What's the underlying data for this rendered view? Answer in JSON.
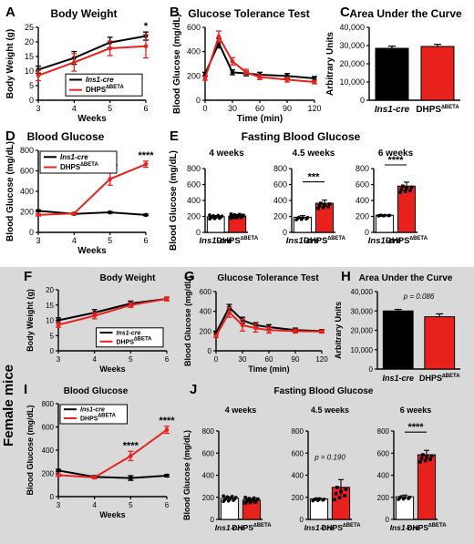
{
  "chart_data": [
    {
      "id": "A",
      "type": "line",
      "title": "Body Weight",
      "xlabel": "Weeks",
      "ylabel": "Body Weight (g)",
      "xlim": [
        3,
        6
      ],
      "ylim": [
        0,
        25
      ],
      "xticks": [
        "3",
        "4",
        "5",
        "6"
      ],
      "yticks": [
        "0",
        "5",
        "10",
        "15",
        "20",
        "25"
      ],
      "x": [
        3,
        4,
        5,
        6
      ],
      "series": [
        {
          "name": "Ins1-cre",
          "color": "#000000",
          "values": [
            10.5,
            14.5,
            19.8,
            22
          ],
          "err": [
            1.2,
            2.2,
            1.8,
            1.4
          ]
        },
        {
          "name": "DHPS∆BETA",
          "color": "#e8211d",
          "values": [
            8.5,
            13,
            17.8,
            18.5
          ],
          "err": [
            1.8,
            3,
            2.5,
            4
          ]
        }
      ],
      "annotations": [
        {
          "x": 6,
          "text": "*"
        }
      ],
      "legend": "bottom-right"
    },
    {
      "id": "B",
      "type": "line",
      "title": "Glucose Tolerance Test",
      "xlabel": "Time (min)",
      "ylabel": "Blood Glucose (mg/dL)",
      "xlim": [
        0,
        120
      ],
      "ylim": [
        0,
        600
      ],
      "xticks": [
        "0",
        "30",
        "60",
        "90",
        "120"
      ],
      "yticks": [
        "0",
        "200",
        "400",
        "600"
      ],
      "x": [
        0,
        15,
        30,
        45,
        60,
        90,
        120
      ],
      "series": [
        {
          "name": "Ins1-cre",
          "color": "#000000",
          "values": [
            215,
            470,
            230,
            220,
            210,
            200,
            180
          ],
          "err": [
            15,
            40,
            20,
            20,
            20,
            20,
            15
          ]
        },
        {
          "name": "DHPS∆BETA",
          "color": "#e8211d",
          "values": [
            180,
            525,
            320,
            230,
            190,
            170,
            150
          ],
          "err": [
            15,
            45,
            30,
            25,
            20,
            20,
            15
          ]
        }
      ]
    },
    {
      "id": "C",
      "type": "bar",
      "title": "Area Under the Curve",
      "ylabel": "Arbitrary Units",
      "ylim": [
        0,
        40000
      ],
      "yticks": [
        "0",
        "10,000",
        "20,000",
        "30,000",
        "40,000"
      ],
      "categories": [
        "Ins1-cre",
        "DHPS∆BETA"
      ],
      "values": [
        28500,
        29500
      ],
      "err": [
        1200,
        1200
      ],
      "colors": [
        "#000000",
        "#e8211d"
      ]
    },
    {
      "id": "D",
      "type": "line",
      "title": "Blood Glucose",
      "xlabel": "Weeks",
      "ylabel": "Blood Glucose (mg/dL)",
      "xlim": [
        3,
        6
      ],
      "ylim": [
        0,
        800
      ],
      "xticks": [
        "3",
        "4",
        "5",
        "6"
      ],
      "yticks": [
        "0",
        "200",
        "400",
        "600",
        "800"
      ],
      "x": [
        3,
        4,
        5,
        6
      ],
      "series": [
        {
          "name": "Ins1-cre",
          "color": "#000000",
          "values": [
            210,
            180,
            195,
            170
          ],
          "err": [
            8,
            8,
            8,
            8
          ]
        },
        {
          "name": "DHPS∆BETA",
          "color": "#e8211d",
          "values": [
            170,
            185,
            520,
            665
          ],
          "err": [
            10,
            10,
            60,
            30
          ]
        }
      ],
      "annotations": [
        {
          "x": 5,
          "text": "****"
        },
        {
          "x": 6,
          "text": "****"
        }
      ],
      "legend": "top-left"
    },
    {
      "id": "E",
      "type": "bar",
      "title": "Fasting Blood Glucose",
      "ylabel": "Blood Glucose (mg/dL)",
      "ylim": [
        0,
        800
      ],
      "yticks": [
        "0",
        "200",
        "400",
        "600",
        "800"
      ],
      "panels": [
        {
          "title": "4 weeks",
          "categories": [
            "Ins1-cre",
            "DHPS∆BETA"
          ],
          "values": [
            195,
            205
          ],
          "err": [
            15,
            15
          ],
          "sig": ""
        },
        {
          "title": "4.5 weeks",
          "categories": [
            "Ins1-cre",
            "DHPS∆BETA"
          ],
          "values": [
            190,
            365
          ],
          "err": [
            20,
            40
          ],
          "sig": "***"
        },
        {
          "title": "6 weeks",
          "categories": [
            "Ins1-cre",
            "DHPS∆BETA"
          ],
          "values": [
            215,
            580
          ],
          "err": [
            5,
            50
          ],
          "sig": "****"
        }
      ]
    },
    {
      "id": "F",
      "type": "line",
      "title": "Body Weight",
      "xlabel": "Weeks",
      "ylabel": "Body Weight (g)",
      "xlim": [
        3,
        6
      ],
      "ylim": [
        0,
        20
      ],
      "xticks": [
        "3",
        "4",
        "5",
        "6"
      ],
      "yticks": [
        "0",
        "5",
        "10",
        "15",
        "20"
      ],
      "x": [
        3,
        4,
        5,
        6
      ],
      "series": [
        {
          "name": "Ins1-cre",
          "color": "#000000",
          "values": [
            10,
            12.5,
            15.5,
            17
          ],
          "err": [
            0.8,
            1,
            0.8,
            0.6
          ]
        },
        {
          "name": "DHPS∆BETA",
          "color": "#e8211d",
          "values": [
            8.5,
            11.5,
            15,
            17
          ],
          "err": [
            0.8,
            1,
            0.8,
            0.6
          ]
        }
      ],
      "legend": "bottom-right"
    },
    {
      "id": "G",
      "type": "line",
      "title": "Glucose Tolerance Test",
      "xlabel": "Time (min)",
      "ylabel": "Blood Glucose (mg/dL)",
      "xlim": [
        0,
        120
      ],
      "ylim": [
        0,
        600
      ],
      "xticks": [
        "0",
        "30",
        "60",
        "90",
        "120"
      ],
      "yticks": [
        "0",
        "200",
        "400",
        "600"
      ],
      "x": [
        0,
        15,
        30,
        45,
        60,
        90,
        120
      ],
      "series": [
        {
          "name": "Ins1-cre",
          "color": "#000000",
          "values": [
            180,
            440,
            310,
            260,
            240,
            210,
            200
          ],
          "err": [
            15,
            30,
            30,
            25,
            25,
            20,
            15
          ]
        },
        {
          "name": "DHPS∆BETA",
          "color": "#e8211d",
          "values": [
            150,
            390,
            260,
            230,
            210,
            200,
            195
          ],
          "err": [
            15,
            50,
            60,
            40,
            30,
            20,
            15
          ]
        }
      ]
    },
    {
      "id": "H",
      "type": "bar",
      "title": "Area Under the Curve",
      "ylabel": "Arbitrary Units",
      "ylim": [
        0,
        40000
      ],
      "yticks": [
        "0",
        "10,000",
        "20,000",
        "30,000",
        "40,000"
      ],
      "categories": [
        "Ins1-cre",
        "DHPS∆BETA"
      ],
      "values": [
        30000,
        27000
      ],
      "err": [
        800,
        1500
      ],
      "colors": [
        "#000000",
        "#e8211d"
      ],
      "annotation": "p = 0.086"
    },
    {
      "id": "I",
      "type": "line",
      "title": "Blood Glucose",
      "xlabel": "Weeks",
      "ylabel": "Blood Glucose (mg/dL)",
      "xlim": [
        3,
        6
      ],
      "ylim": [
        0,
        800
      ],
      "xticks": [
        "3",
        "4",
        "5",
        "6"
      ],
      "yticks": [
        "0",
        "200",
        "400",
        "600",
        "800"
      ],
      "x": [
        3,
        4,
        5,
        6
      ],
      "series": [
        {
          "name": "Ins1-cre",
          "color": "#000000",
          "values": [
            225,
            170,
            160,
            180
          ],
          "err": [
            10,
            10,
            20,
            10
          ]
        },
        {
          "name": "DHPS∆BETA",
          "color": "#e8211d",
          "values": [
            185,
            165,
            350,
            575
          ],
          "err": [
            10,
            10,
            40,
            30
          ]
        }
      ],
      "annotations": [
        {
          "x": 5,
          "text": "****"
        },
        {
          "x": 6,
          "text": "****"
        }
      ],
      "legend": "top-left"
    },
    {
      "id": "J",
      "type": "bar",
      "title": "Fasting Blood Glucose",
      "ylabel": "Blood Glucose (mg/dL)",
      "ylim": [
        0,
        800
      ],
      "yticks": [
        "0",
        "200",
        "400",
        "600",
        "800"
      ],
      "panels": [
        {
          "title": "4 weeks",
          "categories": [
            "Ins1-cre",
            "DHPS∆BETA"
          ],
          "values": [
            190,
            175
          ],
          "err": [
            15,
            15
          ],
          "sig": ""
        },
        {
          "title": "4.5 weeks",
          "categories": [
            "Ins1-cre",
            "DHPS∆BETA"
          ],
          "values": [
            185,
            290
          ],
          "err": [
            10,
            70
          ],
          "sig": "p = 0.190"
        },
        {
          "title": "6 weeks",
          "categories": [
            "Ins1-cre",
            "DHPS∆BETA"
          ],
          "values": [
            205,
            585
          ],
          "err": [
            15,
            40
          ],
          "sig": "****"
        }
      ]
    }
  ],
  "figure": {
    "side_label": "Female mice",
    "colors": {
      "control": "#000000",
      "knockout": "#e8211d",
      "female_band": "#d9d9d9"
    }
  }
}
